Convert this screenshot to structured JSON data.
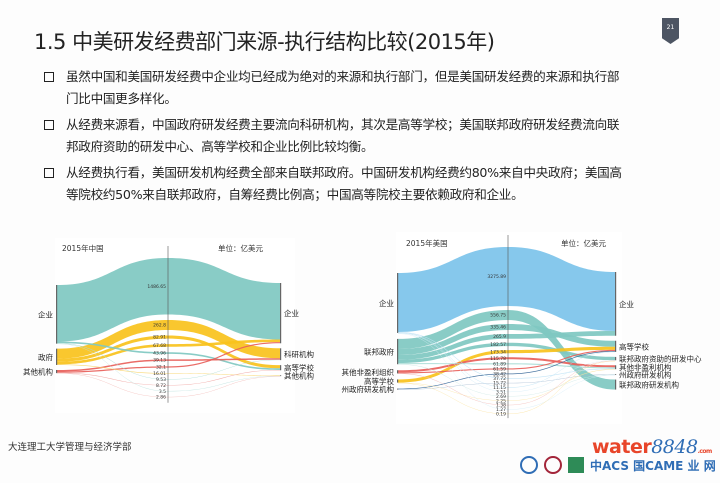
{
  "title": "1.5  中美研发经费部门来源-执行结构比较(2015年)",
  "page_number": "21",
  "bullets": [
    {
      "lines": [
        "虽然中国和美国研发经费中企业均已经成为绝对的来源和执行部门，但是美国研发经费的来源和执行部",
        "门比中国更多样化。"
      ]
    },
    {
      "lines": [
        "从经费来源看，中国政府研发经费主要流向科研机构，其次是高等学校；美国联邦政府研发经费流向联",
        "邦政府资助的研发中心、高等学校和企业比例比较均衡。"
      ]
    },
    {
      "lines": [
        "从经费执行看，美国研发机构经费全部来自联邦政府。中国研发机构经费约80%来自中央政府；美国高",
        "等院校约50%来自联邦政府，自筹经费比例高；中国高等院校主要依赖政府和企业。"
      ]
    }
  ],
  "footer": "大连理工大学管理与经济学部",
  "logo_text": "water8848.com",
  "logo_parts": {
    "a": "water",
    "b": "8848",
    "c": ".com",
    "acc": "中ACS 国CAME 业 网"
  },
  "chart_data": [
    {
      "type": "sankey",
      "title": "2015年中国",
      "unit": "单位：亿美元",
      "sources": [
        "企业",
        "政府",
        "其他机构"
      ],
      "targets": [
        "企业",
        "科研机构",
        "高等学校",
        "其他机构"
      ],
      "flows": [
        {
          "source": "企业",
          "target": "企业",
          "value": 1486.65,
          "label": "1486.65",
          "color": "#7fc8c1"
        },
        {
          "source": "政府",
          "target": "科研机构",
          "value": 262.8,
          "label": "262.8",
          "color": "#f8c21c"
        },
        {
          "source": "政府",
          "target": "高等学校",
          "value": 82.91,
          "label": "82.91",
          "color": "#f8c21c"
        },
        {
          "source": "政府",
          "target": "企业",
          "value": 67.68,
          "label": "67.68",
          "color": "#f8c21c"
        },
        {
          "source": "企业",
          "target": "高等学校",
          "value": 43.96,
          "label": "43.96",
          "color": "#7fc8c1"
        },
        {
          "source": "其他机构",
          "target": "科研机构",
          "value": 39.13,
          "label": "39.13",
          "color": "#e8605a"
        },
        {
          "source": "其他机构",
          "target": "企业",
          "value": 32.1,
          "label": "32.1",
          "color": "#e8605a"
        },
        {
          "source": "政府",
          "target": "其他机构",
          "value": 16.01,
          "label": "16.01",
          "color": "#f8d56a"
        },
        {
          "source": "企业",
          "target": "科研机构",
          "value": 9.53,
          "label": "9.53",
          "color": "#a9dcd6"
        },
        {
          "source": "其他机构",
          "target": "高等学校",
          "value": 8.72,
          "label": "8.72",
          "color": "#f0a39f"
        },
        {
          "source": "企业",
          "target": "其他机构",
          "value": 3.5,
          "label": "3.5",
          "color": "#bfe3df"
        },
        {
          "source": "其他机构",
          "target": "其他机构",
          "value": 2.86,
          "label": "2.86",
          "color": "#f3bcb9"
        }
      ]
    },
    {
      "type": "sankey",
      "title": "2015年美国",
      "unit": "单位：亿美元",
      "sources": [
        "企业",
        "联邦政府",
        "其他非盈利组织",
        "高等学校",
        "州政府研发机构"
      ],
      "targets": [
        "企业",
        "高等学校",
        "联邦政府资助的研发中心",
        "其他非盈利机构",
        "州政府研发机构",
        "联邦政府研发机构"
      ],
      "flows": [
        {
          "source": "企业",
          "target": "企业",
          "value": 3275.89,
          "label": "3275.89",
          "color": "#7cc3ea"
        },
        {
          "source": "联邦政府",
          "target": "联邦政府研发机构",
          "value": 556.75,
          "label": "556.75",
          "color": "#7fc8c1"
        },
        {
          "source": "联邦政府",
          "target": "高等学校",
          "value": 335.46,
          "label": "335.46",
          "color": "#7fc8c1"
        },
        {
          "source": "联邦政府",
          "target": "企业",
          "value": 265.9,
          "label": "265.9",
          "color": "#7fc8c1"
        },
        {
          "source": "联邦政府",
          "target": "联邦政府资助的研发中心",
          "value": 182.57,
          "label": "182.57",
          "color": "#7fc8c1"
        },
        {
          "source": "高等学校",
          "target": "高等学校",
          "value": 173.34,
          "label": "173.34",
          "color": "#f8c21c"
        },
        {
          "source": "其他非盈利组织",
          "target": "其他非盈利机构",
          "value": 115.78,
          "label": "115.78",
          "color": "#e8605a"
        },
        {
          "source": "联邦政府",
          "target": "其他非盈利机构",
          "value": 61.89,
          "label": "61.89",
          "color": "#a9dcd6"
        },
        {
          "source": "其他非盈利组织",
          "target": "高等学校",
          "value": 61.59,
          "label": "61.59",
          "color": "#e8605a"
        },
        {
          "source": "州政府研发机构",
          "target": "高等学校",
          "value": 38.42,
          "label": "38.42",
          "color": "#3c6a9a"
        },
        {
          "source": "企业",
          "target": "其他非盈利机构",
          "value": 37.72,
          "label": "37.72",
          "color": "#bfe3f5"
        },
        {
          "source": "州政府研发机构",
          "target": "州政府研发机构",
          "value": 15.72,
          "label": "15.72",
          "color": "#9fb6cf"
        },
        {
          "source": "企业",
          "target": "高等学校",
          "value": 11.15,
          "label": "11.15",
          "color": "#bfe3f5"
        },
        {
          "source": "企业",
          "target": "联邦政府资助的研发中心",
          "value": 3.51,
          "label": "3.51",
          "color": "#d6eef9"
        },
        {
          "source": "联邦政府",
          "target": "州政府研发机构",
          "value": 2.69,
          "label": "2.69",
          "color": "#cfe9e6"
        },
        {
          "source": "高等学校",
          "target": "其他非盈利机构",
          "value": 2.25,
          "label": "2.25",
          "color": "#fbe3a0"
        },
        {
          "source": "其他非盈利组织",
          "target": "联邦政府资助的研发中心",
          "value": 1.38,
          "label": "1.38",
          "color": "#f3bcb9"
        },
        {
          "source": "企业",
          "target": "州政府研发机构",
          "value": 1.27,
          "label": "1.27",
          "color": "#d6eef9"
        },
        {
          "source": "高等学校",
          "target": "联邦政府资助的研发中心",
          "value": 0.19,
          "label": "0.19",
          "color": "#fbe3a0"
        }
      ]
    }
  ]
}
